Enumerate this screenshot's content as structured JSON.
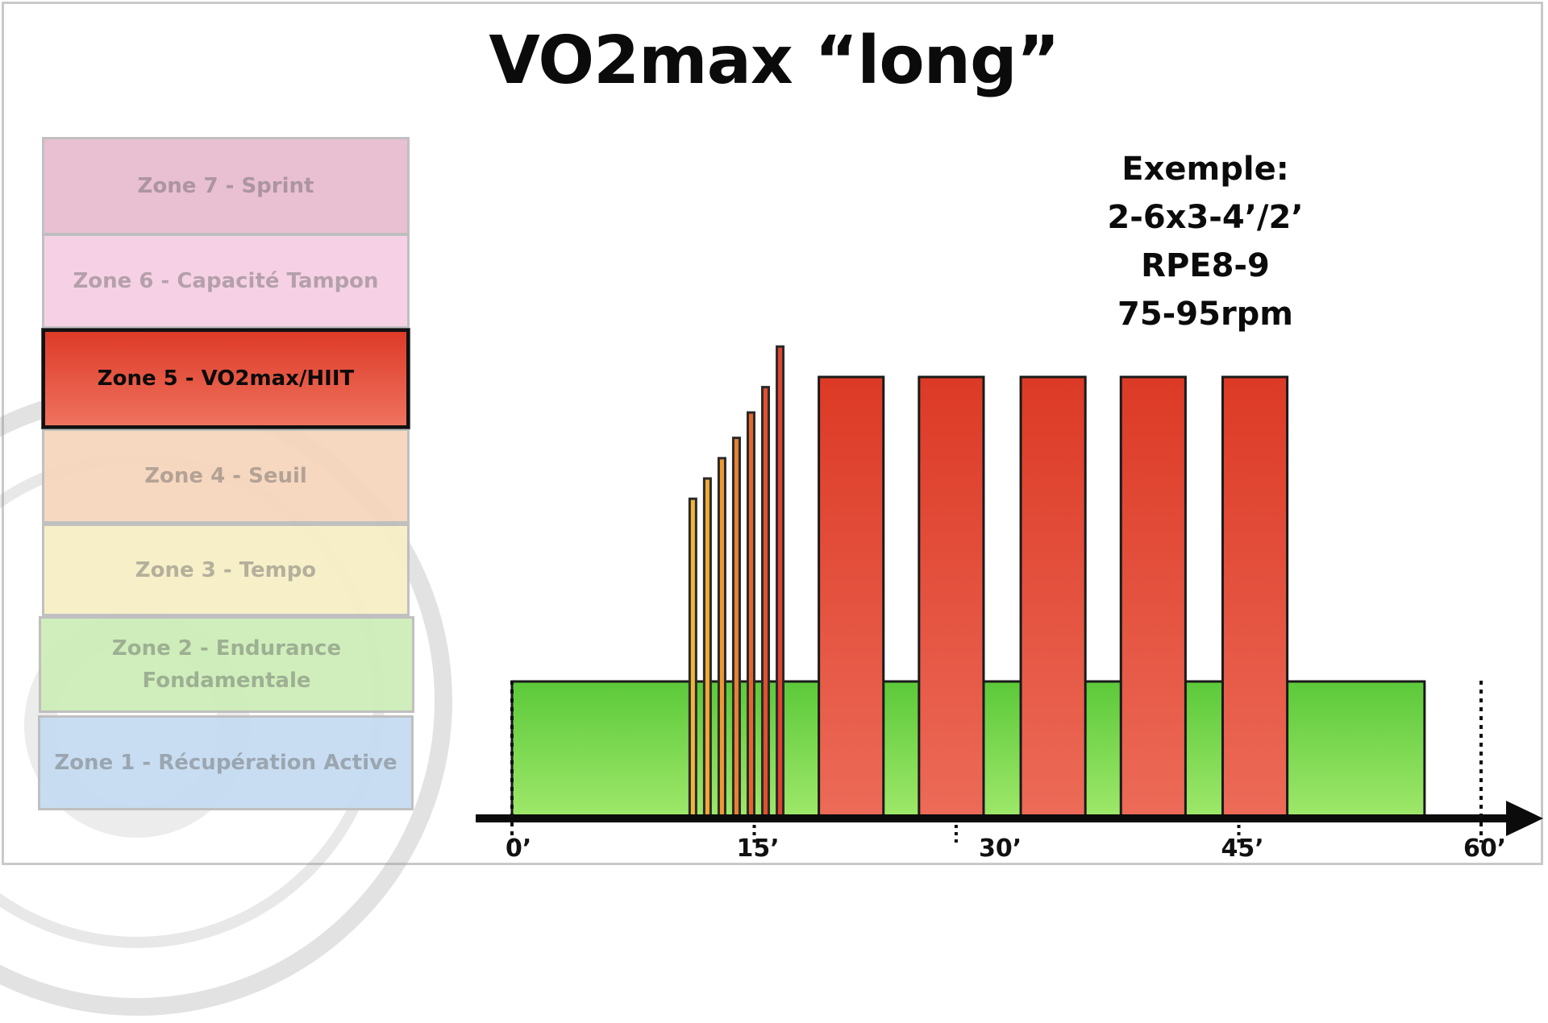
{
  "title": "VO2max “long”",
  "zones": [
    {
      "label": "Zone 7 - Sprint",
      "color": "#e8bcd0",
      "active": false
    },
    {
      "label": "Zone 6 - Capacité Tampon",
      "color": "#f6cfe4",
      "active": false
    },
    {
      "label": "Zone 5 - VO2max/HIIT",
      "color": "#e0442f",
      "active": true
    },
    {
      "label": "Zone 4 - Seuil",
      "color": "#f6d6bd",
      "active": false
    },
    {
      "label": "Zone 3 - Tempo",
      "color": "#f7efc6",
      "active": false
    },
    {
      "label": "Zone 2 - Endurance Fondamentale",
      "color": "#cdeeb8",
      "active": false
    },
    {
      "label": "Zone 1 - Récupération Active",
      "color": "#c6dcf1",
      "active": false
    }
  ],
  "example": {
    "line1": "Exemple:",
    "line2": "2-6x3-4’/2’",
    "line3": "RPE8-9",
    "line4": "75-95rpm"
  },
  "axis": {
    "ticks": [
      {
        "minute": 0,
        "label": "0’"
      },
      {
        "minute": 15,
        "label": "15’"
      },
      {
        "minute": 30,
        "label": "30’"
      },
      {
        "minute": 45,
        "label": "45’"
      },
      {
        "minute": 60,
        "label": "60’"
      }
    ],
    "range_minutes": [
      0,
      60
    ]
  },
  "chart_data": {
    "type": "bar",
    "xunit": "minutes",
    "y_levels": "zone number (1-7)",
    "background": {
      "zone": 2,
      "start": 0,
      "end": 56.5
    },
    "rampup": [
      {
        "start": 11.0,
        "zone": 3.8,
        "color": "#f0b63a"
      },
      {
        "start": 11.9,
        "zone": 4.0,
        "color": "#f1a935"
      },
      {
        "start": 12.8,
        "zone": 4.2,
        "color": "#ee9a33"
      },
      {
        "start": 13.7,
        "zone": 4.4,
        "color": "#ea8031"
      },
      {
        "start": 14.6,
        "zone": 4.65,
        "color": "#e6652f"
      },
      {
        "start": 15.5,
        "zone": 4.9,
        "color": "#e3502e"
      },
      {
        "start": 16.4,
        "zone": 5.3,
        "color": "#e0442f"
      }
    ],
    "intervals": [
      {
        "start": 19.0,
        "end": 23.0,
        "zone": 5
      },
      {
        "start": 25.2,
        "end": 29.2,
        "zone": 5
      },
      {
        "start": 31.5,
        "end": 35.5,
        "zone": 5
      },
      {
        "start": 37.7,
        "end": 41.7,
        "zone": 5
      },
      {
        "start": 44.0,
        "end": 48.0,
        "zone": 5
      }
    ],
    "colors": {
      "zone2": "#74d34a",
      "zone5": "#e0442f"
    }
  }
}
